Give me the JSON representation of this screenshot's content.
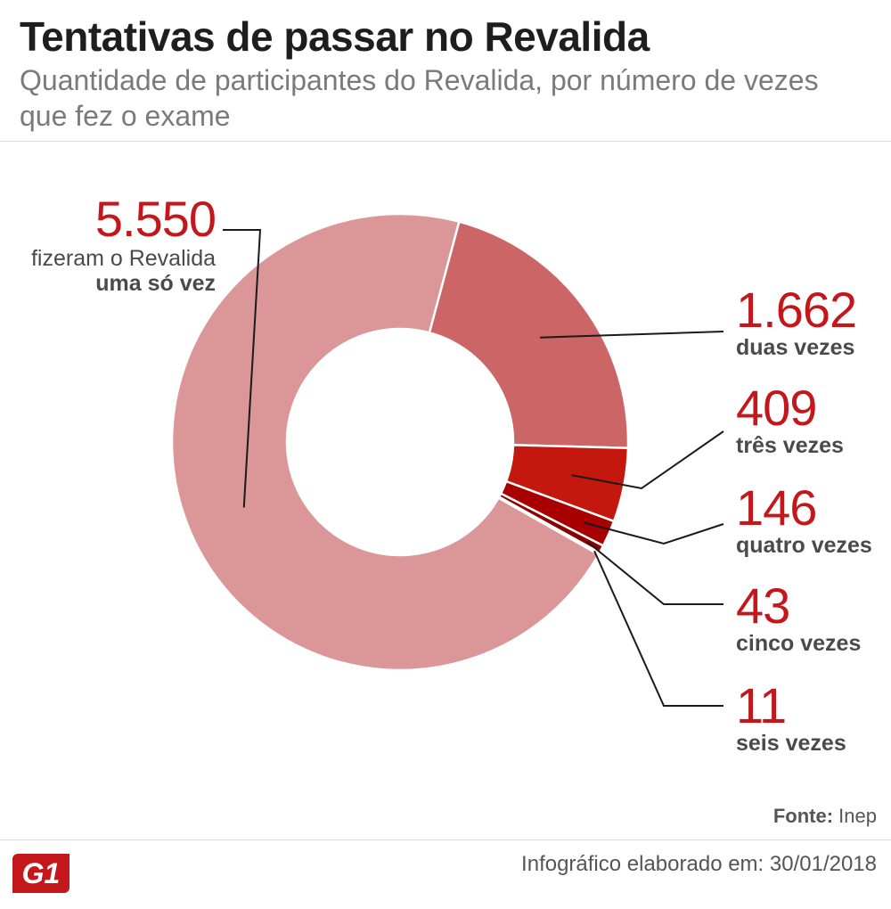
{
  "title": "Tentativas de passar no Revalida",
  "subtitle": "Quantidade de participantes do Revalida, por número de vezes que fez o exame",
  "chart_data": {
    "type": "pie",
    "variant": "donut",
    "title": "Tentativas de passar no Revalida",
    "categories": [
      "uma só vez",
      "duas vezes",
      "três vezes",
      "quatro vezes",
      "cinco vezes",
      "seis vezes"
    ],
    "values": [
      5550,
      1662,
      409,
      146,
      43,
      11
    ],
    "value_labels": [
      "5.550",
      "1.662",
      "409",
      "146",
      "43",
      "11"
    ],
    "colors": [
      "#db9698",
      "#cc6565",
      "#c4170d",
      "#a80000",
      "#8b0000",
      "#7a0000"
    ]
  },
  "labels": [
    {
      "value": "5.550",
      "prefix": "fizeram o Revalida",
      "desc": "uma só vez"
    },
    {
      "value": "1.662",
      "desc": "duas vezes"
    },
    {
      "value": "409",
      "desc": "três vezes"
    },
    {
      "value": "146",
      "desc": "quatro vezes"
    },
    {
      "value": "43",
      "desc": "cinco vezes"
    },
    {
      "value": "11",
      "desc": "seis vezes"
    }
  ],
  "source_label": "Fonte:",
  "source_value": "Inep",
  "credit": "Infográfico elaborado em: 30/01/2018",
  "logo": "G1"
}
